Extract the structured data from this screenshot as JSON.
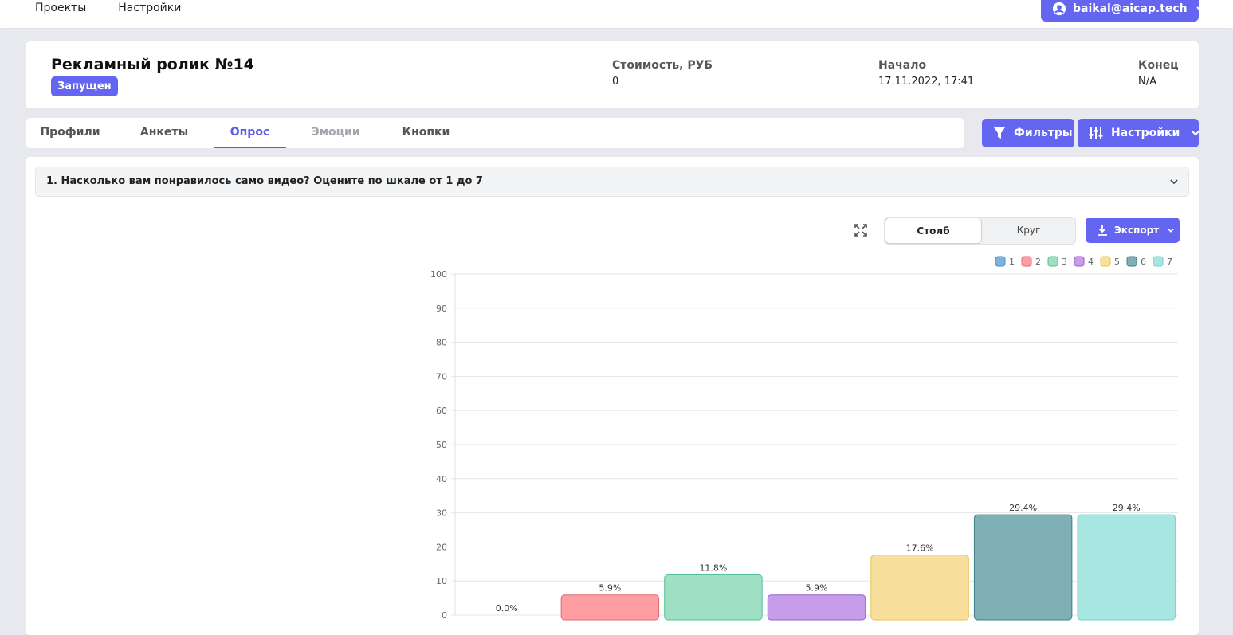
{
  "nav": {
    "projects": "Проекты",
    "settings": "Настройки"
  },
  "user": {
    "email": "baikal@aicap.tech"
  },
  "campaign": {
    "title": "Рекламный ролик №14",
    "status": "Запущен",
    "cost_label": "Стоимость, РУБ",
    "cost_value": "0",
    "start_label": "Начало",
    "start_value": "17.11.2022, 17:41",
    "end_label": "Конец",
    "end_value": "N/A"
  },
  "tabs": [
    {
      "label": "Профили"
    },
    {
      "label": "Анкеты"
    },
    {
      "label": "Опрос"
    },
    {
      "label": "Эмоции"
    },
    {
      "label": "Кнопки"
    }
  ],
  "actions": {
    "filters": "Фильтры",
    "settings": "Настройки"
  },
  "question": {
    "text": "1. Насколько вам понравилось само видео? Оцените по шкале от 1 до 7"
  },
  "view": {
    "bar": "Столб",
    "pie": "Круг",
    "export": "Экспорт"
  },
  "colors": {
    "accent": "#6466f1"
  },
  "chart_data": {
    "type": "bar",
    "categories": [
      "1",
      "2",
      "3",
      "4",
      "5",
      "6",
      "7"
    ],
    "values": [
      0.0,
      5.9,
      11.8,
      5.9,
      17.6,
      29.4,
      29.4
    ],
    "data_labels": [
      "0.0%",
      "5.9%",
      "11.8%",
      "5.9%",
      "17.6%",
      "29.4%",
      "29.4%"
    ],
    "series_colors": [
      "#7fb3dd",
      "#ff9ea2",
      "#9fe0c4",
      "#c79ce8",
      "#f8e09c",
      "#7fb0b5",
      "#a8e6e2"
    ],
    "border_colors": [
      "#4a90c8",
      "#e06a70",
      "#55c195",
      "#9a5fd3",
      "#e8c252",
      "#3d7f86",
      "#6fd3cc"
    ],
    "ylim": [
      0,
      100
    ],
    "yticks": [
      "0",
      "10",
      "20",
      "30",
      "40",
      "50",
      "60",
      "70",
      "80",
      "90",
      "100"
    ],
    "legend_position": "top-right",
    "grid": true
  }
}
